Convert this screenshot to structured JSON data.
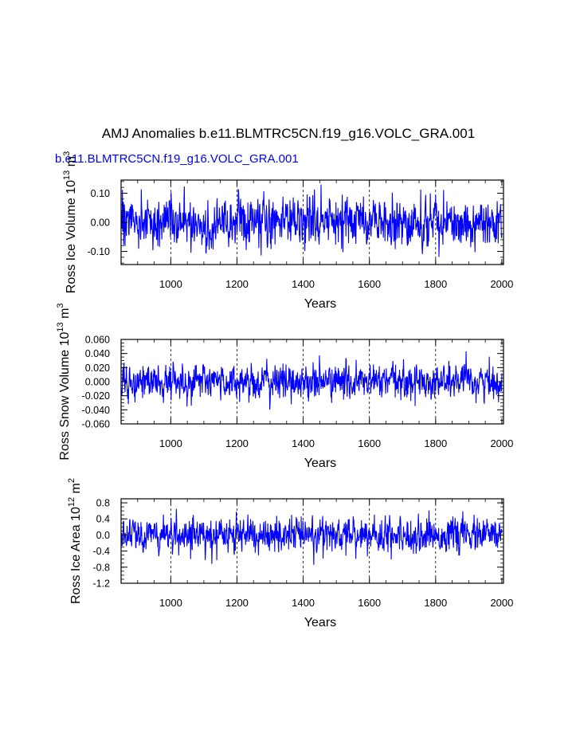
{
  "figure": {
    "title": "AMJ Anomalies b.e11.BLMTRC5CN.f19_g16.VOLC_GRA.001",
    "subtitle": "b.e11.BLMTRC5CN.f19_g16.VOLC_GRA.001",
    "line_color": "#0000ff",
    "subtitle_color": "#0000ff"
  },
  "chart_data": [
    {
      "type": "line",
      "name": "panel-ice-volume",
      "ylabel": {
        "main": "Ross Ice Volume 10",
        "exp1": "13",
        "unit": " m",
        "exp2": "3"
      },
      "xlabel": "Years",
      "xlim": [
        850,
        2005
      ],
      "ylim": [
        -0.145,
        0.145
      ],
      "xticks": [
        1000,
        1200,
        1400,
        1600,
        1800,
        2000
      ],
      "xtick_labels": [
        "1000",
        "1200",
        "1400",
        "1600",
        "1800",
        "2000"
      ],
      "yticks": [
        -0.1,
        0.0,
        0.1
      ],
      "ytick_labels": [
        "-0.10",
        "0.00",
        "0.10"
      ],
      "yminor_step": 0.02,
      "amplitude": 0.04,
      "seed": 11,
      "vgrid": [
        1000,
        1200,
        1400,
        1600,
        1800
      ]
    },
    {
      "type": "line",
      "name": "panel-snow-volume",
      "ylabel": {
        "main": "Ross Snow Volume 10",
        "exp1": "13",
        "unit": " m",
        "exp2": "3"
      },
      "xlabel": "Years",
      "xlim": [
        850,
        2005
      ],
      "ylim": [
        -0.06,
        0.06
      ],
      "xticks": [
        1000,
        1200,
        1400,
        1600,
        1800,
        2000
      ],
      "xtick_labels": [
        "1000",
        "1200",
        "1400",
        "1600",
        "1800",
        "2000"
      ],
      "yticks": [
        -0.06,
        -0.04,
        -0.02,
        0.0,
        0.02,
        0.04,
        0.06
      ],
      "ytick_labels": [
        "-0.060",
        "-0.040",
        "-0.020",
        "0.000",
        "0.020",
        "0.040",
        "0.060"
      ],
      "yminor_step": 0.005,
      "amplitude": 0.012,
      "seed": 23,
      "vgrid": [
        1000,
        1200,
        1400,
        1600,
        1800
      ]
    },
    {
      "type": "line",
      "name": "panel-ice-area",
      "ylabel": {
        "main": "Ross Ice Area 10",
        "exp1": "12",
        "unit": " m",
        "exp2": "2"
      },
      "xlabel": "Years",
      "xlim": [
        850,
        2005
      ],
      "ylim": [
        -1.2,
        0.9
      ],
      "xticks": [
        1000,
        1200,
        1400,
        1600,
        1800,
        2000
      ],
      "xtick_labels": [
        "1000",
        "1200",
        "1400",
        "1600",
        "1800",
        "2000"
      ],
      "yticks": [
        -1.2,
        -0.8,
        -0.4,
        0.0,
        0.4,
        0.8
      ],
      "ytick_labels": [
        "-1.2",
        "-0.8",
        "-0.4",
        "0.0",
        "0.4",
        "0.8"
      ],
      "yminor_step": 0.1,
      "amplitude": 0.2,
      "seed": 37,
      "vgrid": [
        1000,
        1200,
        1400,
        1600,
        1800
      ]
    }
  ]
}
